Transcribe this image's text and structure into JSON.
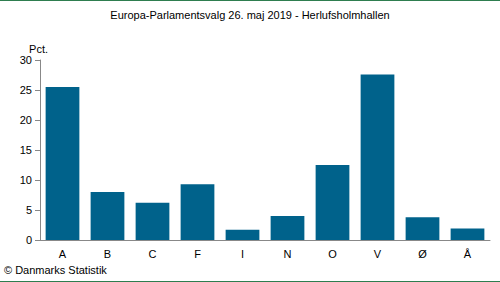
{
  "chart_data": {
    "type": "bar",
    "title": "Europa-Parlamentsvalg 26. maj 2019 - Herlufsholmhallen",
    "y_label": "Pct.",
    "annotations": [
      "© Danmarks Statistik"
    ],
    "categories": [
      "A",
      "B",
      "C",
      "F",
      "I",
      "N",
      "O",
      "V",
      "Ø",
      "Å"
    ],
    "values": [
      25.5,
      8.0,
      6.2,
      9.3,
      1.7,
      4.0,
      12.5,
      27.6,
      3.8,
      1.9
    ],
    "color": "#00628b",
    "ylim": [
      0,
      30
    ],
    "yticks": [
      0,
      5,
      10,
      15,
      20,
      25,
      30
    ],
    "grid": false
  }
}
